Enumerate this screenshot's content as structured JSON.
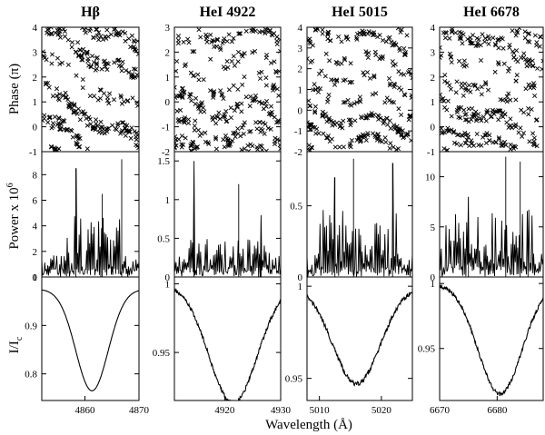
{
  "figure": {
    "xlabel": "Wavelength (Å)",
    "ylabels": {
      "phase": "Phase (π)",
      "power_main": "Power x 10",
      "power_sup": "6",
      "profile_main": "I/I",
      "profile_sub": "c"
    }
  },
  "chart_data": [
    {
      "type": "scatter",
      "row": "phase",
      "column": "Hβ",
      "title": "Hβ",
      "ylabel": "Phase (π)",
      "xlim": [
        4852,
        4870
      ],
      "ylim": [
        -1,
        4
      ],
      "yticks": [
        -1,
        0,
        1,
        2,
        3,
        4
      ],
      "yticklabels": [
        "-1",
        "0",
        "1",
        "2",
        "3",
        "4"
      ],
      "marker": "x",
      "bands": 4,
      "drift_per_plot": -2.2,
      "wiggle": 0.25,
      "spread": 0.28
    },
    {
      "type": "scatter",
      "row": "phase",
      "column": "HeI 4922",
      "title": "HeI 4922",
      "ylabel": "",
      "xlim": [
        4911,
        4930
      ],
      "ylim": [
        -2,
        3
      ],
      "yticks": [
        -2,
        -1,
        0,
        1,
        2,
        3
      ],
      "yticklabels": [
        "-2",
        "-1",
        "0",
        "1",
        "2",
        "3"
      ],
      "marker": "x",
      "bands": 5,
      "drift_per_plot": -0.5,
      "wiggle": 0.45,
      "spread": 0.25
    },
    {
      "type": "scatter",
      "row": "phase",
      "column": "HeI 5015",
      "title": "HeI 5015",
      "ylabel": "",
      "xlim": [
        5008,
        5025
      ],
      "ylim": [
        -2,
        4
      ],
      "yticks": [
        -2,
        -1,
        0,
        1,
        2,
        3,
        4
      ],
      "yticklabels": [
        "-2",
        "-1",
        "0",
        "1",
        "2",
        "3",
        "4"
      ],
      "marker": "x",
      "bands": 6,
      "drift_per_plot": -1.0,
      "wiggle": 0.35,
      "spread": 0.2
    },
    {
      "type": "scatter",
      "row": "phase",
      "column": "HeI 6678",
      "title": "HeI 6678",
      "ylabel": "",
      "xlim": [
        6670,
        6688
      ],
      "ylim": [
        -1,
        4
      ],
      "yticks": [
        -1,
        0,
        1,
        2,
        3,
        4
      ],
      "yticklabels": [
        "-1",
        "0",
        "1",
        "2",
        "3",
        "4"
      ],
      "marker": "x",
      "bands": 5,
      "drift_per_plot": -1.4,
      "wiggle": 0.2,
      "spread": 0.28
    },
    {
      "type": "line",
      "row": "power",
      "column": "Hβ",
      "ylabel": "Power x 10^6",
      "xlim": [
        4852,
        4870
      ],
      "ylim": [
        0,
        9.8
      ],
      "yticks": [
        0,
        2,
        4,
        6,
        8
      ],
      "yticklabels": [
        "0",
        "2",
        "4",
        "6",
        "8"
      ],
      "base": 1.5,
      "active_range": [
        4856.5,
        4866.5
      ],
      "active_level": 4.5,
      "peaks": [
        {
          "x": 4858.3,
          "y": 8.5
        },
        {
          "x": 4866.8,
          "y": 9.2
        },
        {
          "x": 4863.2,
          "y": 6.5
        }
      ]
    },
    {
      "type": "line",
      "row": "power",
      "column": "HeI 4922",
      "ylabel": "",
      "xlim": [
        4911,
        4930
      ],
      "ylim": [
        0,
        1.62
      ],
      "yticks": [
        0,
        0.5,
        1,
        1.5
      ],
      "yticklabels": [
        "0",
        "0.5",
        "1",
        "1.5"
      ],
      "base": 0.25,
      "active_range": [
        4913,
        4928
      ],
      "active_level": 0.45,
      "peaks": [
        {
          "x": 4914.5,
          "y": 1.5
        },
        {
          "x": 4922.5,
          "y": 1.2
        },
        {
          "x": 4926.5,
          "y": 0.8
        }
      ]
    },
    {
      "type": "line",
      "row": "power",
      "column": "HeI 5015",
      "ylabel": "",
      "xlim": [
        5008,
        5025
      ],
      "ylim": [
        0,
        0.88
      ],
      "yticks": [
        0,
        0.5
      ],
      "yticklabels": [
        "0",
        "0.5"
      ],
      "base": 0.15,
      "active_range": [
        5010,
        5023
      ],
      "active_level": 0.45,
      "peaks": [
        {
          "x": 5015.5,
          "y": 0.83
        },
        {
          "x": 5021.8,
          "y": 0.8
        },
        {
          "x": 5012.5,
          "y": 0.7
        }
      ]
    },
    {
      "type": "line",
      "row": "power",
      "column": "HeI 6678",
      "ylabel": "",
      "xlim": [
        6670,
        6688
      ],
      "ylim": [
        0,
        12.5
      ],
      "yticks": [
        0,
        5,
        10
      ],
      "yticklabels": [
        "0",
        "5",
        "10"
      ],
      "base": 3.0,
      "active_range": [
        6671,
        6687
      ],
      "active_level": 6.0,
      "peaks": [
        {
          "x": 6681.5,
          "y": 12.0
        },
        {
          "x": 6684.0,
          "y": 11.5
        },
        {
          "x": 6675.0,
          "y": 8.0
        }
      ]
    },
    {
      "type": "line",
      "row": "profile",
      "column": "Hβ",
      "ylabel": "I/Ic",
      "xlim": [
        4852,
        4870
      ],
      "ylim": [
        0.745,
        1.0
      ],
      "xticks": [
        4860,
        4870
      ],
      "xticklabels": [
        "4860",
        "4870"
      ],
      "yticks": [
        0.8,
        0.9,
        1.0
      ],
      "yticklabels": [
        "0.8",
        "0.9",
        "1"
      ],
      "continuum": 0.975,
      "depth": 0.21,
      "center": 4861.3,
      "width": 3.0,
      "noise": 0.0
    },
    {
      "type": "line",
      "row": "profile",
      "column": "HeI 4922",
      "ylabel": "",
      "xlim": [
        4911,
        4930
      ],
      "ylim": [
        0.915,
        1.005
      ],
      "xticks": [
        4920,
        4930
      ],
      "xticklabels": [
        "4920",
        "4930"
      ],
      "yticks": [
        0.95,
        1.0
      ],
      "yticklabels": [
        "0.95",
        "1"
      ],
      "continuum": 1.0,
      "depth": 0.087,
      "center": 4921.5,
      "width": 4.3,
      "noise": 0.0015
    },
    {
      "type": "line",
      "row": "profile",
      "column": "HeI 5015",
      "ylabel": "",
      "xlim": [
        5008,
        5025
      ],
      "ylim": [
        0.938,
        1.005
      ],
      "xticks": [
        5010,
        5020
      ],
      "xticklabels": [
        "5010",
        "5020"
      ],
      "yticks": [
        0.95,
        1.0
      ],
      "yticklabels": [
        "0.95",
        "1"
      ],
      "continuum": 1.0,
      "depth": 0.053,
      "center": 5016.0,
      "width": 3.8,
      "noise": 0.0012
    },
    {
      "type": "line",
      "row": "profile",
      "column": "HeI 6678",
      "ylabel": "",
      "xlim": [
        6670,
        6688
      ],
      "ylim": [
        0.91,
        1.005
      ],
      "xticks": [
        6670,
        6680
      ],
      "xticklabels": [
        "6670",
        "6680"
      ],
      "yticks": [
        0.95,
        1.0
      ],
      "yticklabels": [
        "0.95",
        "1"
      ],
      "continuum": 1.0,
      "depth": 0.085,
      "center": 6680.5,
      "width": 3.8,
      "noise": 0.0015
    }
  ]
}
